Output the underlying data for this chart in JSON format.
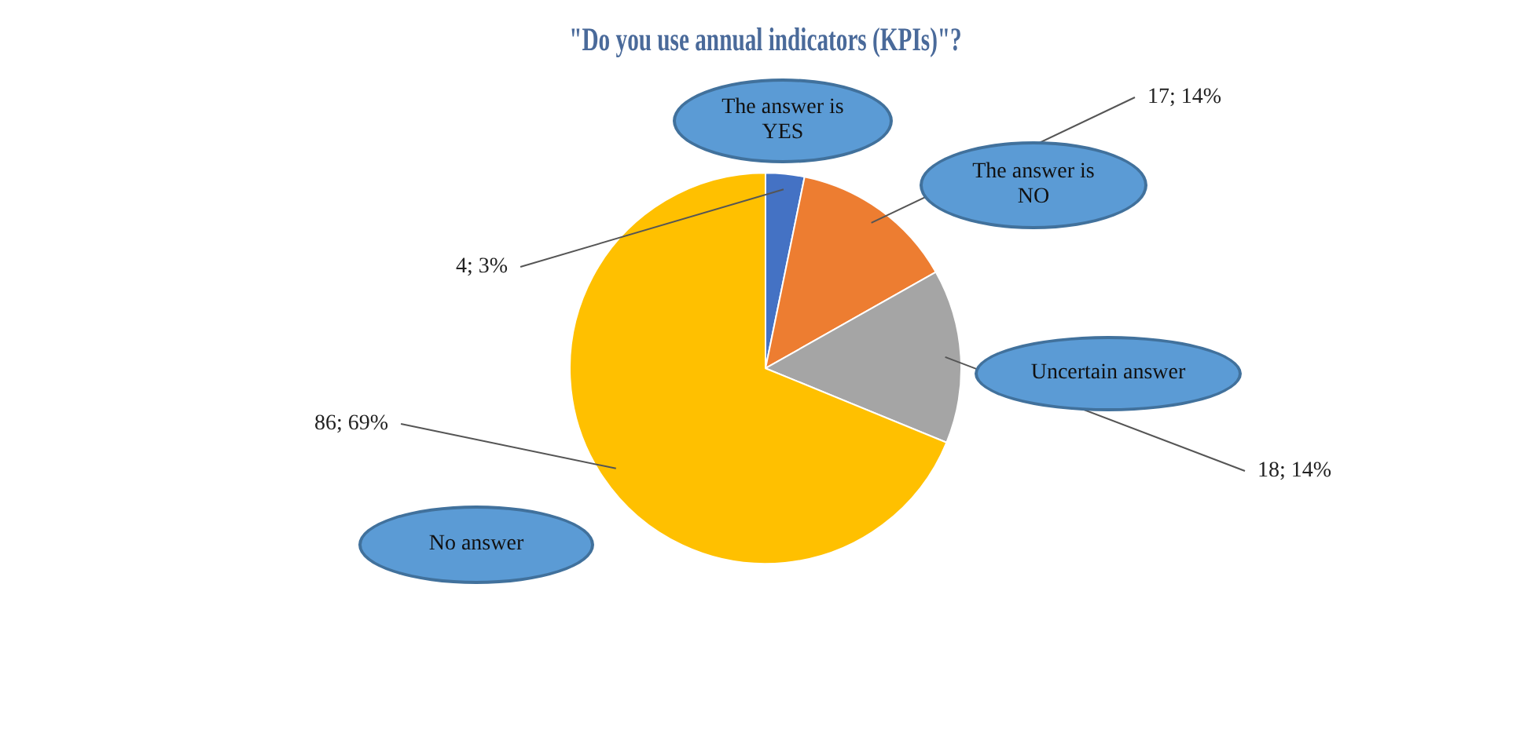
{
  "chart_data": {
    "type": "pie",
    "title": "\"Do you use annual indicators (KPIs)\"?",
    "categories": [
      "The answer is YES",
      "The answer is NO",
      "Uncertain answer",
      "No answer"
    ],
    "values": [
      4,
      17,
      18,
      86
    ],
    "colors": [
      "#4472c4",
      "#ed7d31",
      "#a5a5a5",
      "#ffc000"
    ],
    "value_labels": [
      "4; 3%",
      "17; 14%",
      "18; 14%",
      "86; 69%"
    ]
  }
}
